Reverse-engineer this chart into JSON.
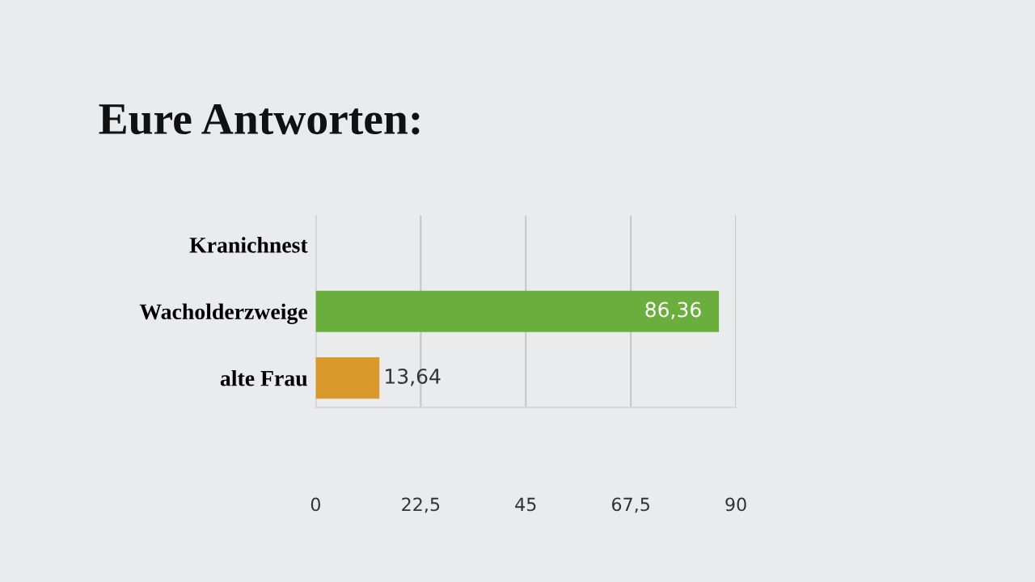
{
  "chart_data": {
    "type": "bar",
    "orientation": "horizontal",
    "title": "Eure Antworten:",
    "categories": [
      "Kranichnest",
      "Wacholderzweige",
      "alte Frau"
    ],
    "values": [
      0,
      86.36,
      13.64
    ],
    "colors": [
      "#6aaf3e",
      "#6aaf3e",
      "#d9982a"
    ],
    "value_labels": [
      null,
      "86,36",
      "13,64"
    ],
    "xlim": [
      0,
      90
    ],
    "xticks": [
      0,
      {
        "value": 22.5,
        "label": "22,5"
      },
      45,
      {
        "value": 67.5,
        "label": "67,5"
      },
      90
    ],
    "grid": "x"
  }
}
